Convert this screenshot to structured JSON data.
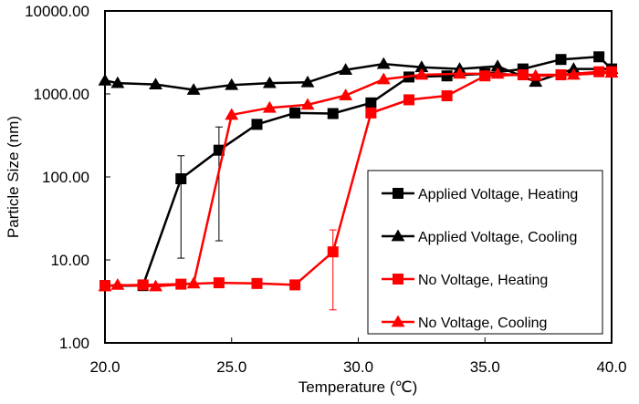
{
  "chart_data": {
    "type": "line",
    "xlabel": "Temperature (℃)",
    "ylabel": "Particle Size (nm)",
    "xlim": [
      20,
      40
    ],
    "ylim": [
      1,
      10000
    ],
    "yscale": "log",
    "x_ticks": [
      "20.0",
      "25.0",
      "30.0",
      "35.0",
      "40.0"
    ],
    "y_ticks": [
      "1.00",
      "10.00",
      "100.00",
      "1000.00",
      "10000.00"
    ],
    "legend_position": "right",
    "series": [
      {
        "name": "Applied Voltage, Heating",
        "color": "#000000",
        "marker": "square",
        "points": [
          [
            20,
            4.9
          ],
          [
            21.5,
            4.9
          ],
          [
            23,
            95
          ],
          [
            24.5,
            210
          ],
          [
            26,
            430
          ],
          [
            27.5,
            590
          ],
          [
            29,
            580
          ],
          [
            30.5,
            780
          ],
          [
            32,
            1600
          ],
          [
            33.5,
            1650
          ],
          [
            35,
            1750
          ],
          [
            36.5,
            2000
          ],
          [
            38,
            2600
          ],
          [
            39.5,
            2800
          ],
          [
            40,
            2000
          ]
        ],
        "error_bars": [
          {
            "x": 23,
            "low": 10.5,
            "high": 180
          },
          {
            "x": 24.5,
            "low": 17,
            "high": 400
          }
        ]
      },
      {
        "name": "Applied Voltage, Cooling",
        "color": "#000000",
        "marker": "triangle",
        "points": [
          [
            20,
            1450
          ],
          [
            20.5,
            1350
          ],
          [
            22,
            1300
          ],
          [
            23.5,
            1120
          ],
          [
            25,
            1280
          ],
          [
            26.5,
            1350
          ],
          [
            28,
            1380
          ],
          [
            29.5,
            1950
          ],
          [
            31,
            2300
          ],
          [
            32.5,
            2100
          ],
          [
            34,
            2000
          ],
          [
            35.5,
            2150
          ],
          [
            37,
            1400
          ],
          [
            38.5,
            2000
          ],
          [
            40,
            2000
          ]
        ]
      },
      {
        "name": "No Voltage, Heating",
        "color": "#ff0000",
        "marker": "square",
        "points": [
          [
            20,
            4.9
          ],
          [
            21.5,
            5.0
          ],
          [
            23,
            5.1
          ],
          [
            24.5,
            5.3
          ],
          [
            26,
            5.2
          ],
          [
            27.5,
            5.0
          ],
          [
            29,
            12.5
          ],
          [
            30.5,
            590
          ],
          [
            32,
            850
          ],
          [
            33.5,
            950
          ],
          [
            35,
            1650
          ],
          [
            36.5,
            1700
          ],
          [
            38,
            1700
          ],
          [
            39.5,
            1850
          ],
          [
            40,
            1850
          ]
        ],
        "error_bars": [
          {
            "x": 29,
            "low": 2.5,
            "high": 23
          }
        ]
      },
      {
        "name": "No Voltage, Cooling",
        "color": "#ff0000",
        "marker": "triangle",
        "points": [
          [
            20,
            4.8
          ],
          [
            20.5,
            5.0
          ],
          [
            22,
            4.8
          ],
          [
            23.5,
            5.2
          ],
          [
            25,
            560
          ],
          [
            26.5,
            680
          ],
          [
            28,
            740
          ],
          [
            29.5,
            960
          ],
          [
            31,
            1500
          ],
          [
            32.5,
            1700
          ],
          [
            34,
            1750
          ],
          [
            35.5,
            1750
          ],
          [
            37,
            1650
          ],
          [
            38.5,
            1700
          ],
          [
            40,
            1800
          ]
        ]
      }
    ]
  }
}
